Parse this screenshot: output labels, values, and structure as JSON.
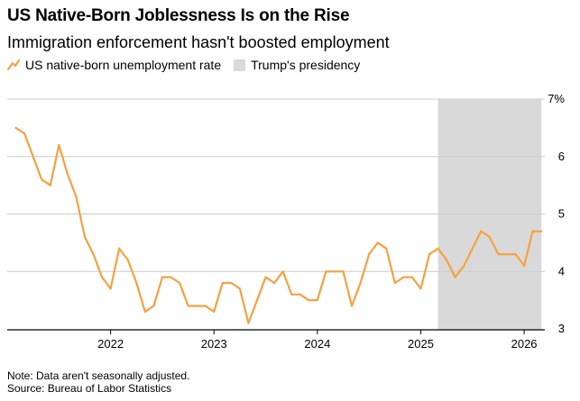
{
  "header": {
    "title": "US Native-Born Joblessness Is on the Rise",
    "subtitle": "Immigration enforcement hasn't boosted employment"
  },
  "legend": {
    "series_label": "US native-born unemployment rate",
    "shade_label": "Trump's presidency"
  },
  "footer": {
    "note": "Note: Data aren't seasonally adjusted.",
    "source": "Source: Bureau of Labor Statistics"
  },
  "colors": {
    "line": "#f5a142",
    "shade": "#d9d9d9",
    "grid": "#cccccc",
    "axis": "#000000"
  },
  "chart_data": {
    "type": "line",
    "title": "US Native-Born Joblessness Is on the Rise",
    "xlabel": "",
    "ylabel": "",
    "ylim": [
      3,
      7
    ],
    "xlim": [
      2021.0,
      2026.2
    ],
    "yticks": [
      3,
      4,
      5,
      6,
      7
    ],
    "ytick_labels": [
      "3",
      "4",
      "5",
      "6",
      "7%"
    ],
    "xticks": [
      2022,
      2023,
      2024,
      2025,
      2026
    ],
    "xtick_labels": [
      "2022",
      "2023",
      "2024",
      "2025",
      "2026"
    ],
    "grid": true,
    "legend_position": "top-left",
    "shaded_regions": [
      {
        "label": "Trump's presidency",
        "start": 2025.167,
        "end": 2026.167
      }
    ],
    "series": [
      {
        "name": "US native-born unemployment rate",
        "x": [
          2021.083,
          2021.167,
          2021.25,
          2021.333,
          2021.417,
          2021.5,
          2021.583,
          2021.667,
          2021.75,
          2021.833,
          2021.917,
          2022.0,
          2022.083,
          2022.167,
          2022.25,
          2022.333,
          2022.417,
          2022.5,
          2022.583,
          2022.667,
          2022.75,
          2022.833,
          2022.917,
          2023.0,
          2023.083,
          2023.167,
          2023.25,
          2023.333,
          2023.417,
          2023.5,
          2023.583,
          2023.667,
          2023.75,
          2023.833,
          2023.917,
          2024.0,
          2024.083,
          2024.167,
          2024.25,
          2024.333,
          2024.417,
          2024.5,
          2024.583,
          2024.667,
          2024.75,
          2024.833,
          2024.917,
          2025.0,
          2025.083,
          2025.167,
          2025.25,
          2025.333,
          2025.417,
          2025.5,
          2025.583,
          2025.667,
          2025.75,
          2025.833,
          2025.917,
          2026.0,
          2026.083,
          2026.167
        ],
        "values": [
          6.5,
          6.4,
          6.0,
          5.6,
          5.5,
          6.2,
          5.7,
          5.3,
          4.6,
          4.3,
          3.9,
          3.7,
          4.4,
          4.2,
          3.8,
          3.3,
          3.4,
          3.9,
          3.9,
          3.8,
          3.4,
          3.4,
          3.4,
          3.3,
          3.8,
          3.8,
          3.7,
          3.1,
          3.5,
          3.9,
          3.8,
          4.0,
          3.6,
          3.6,
          3.5,
          3.5,
          4.0,
          4.0,
          4.0,
          3.4,
          3.8,
          4.3,
          4.5,
          4.4,
          3.8,
          3.9,
          3.9,
          3.7,
          4.3,
          4.4,
          4.2,
          3.9,
          4.1,
          4.4,
          4.7,
          4.6,
          4.3,
          4.3,
          4.3,
          4.1,
          4.7,
          4.7
        ]
      }
    ]
  }
}
